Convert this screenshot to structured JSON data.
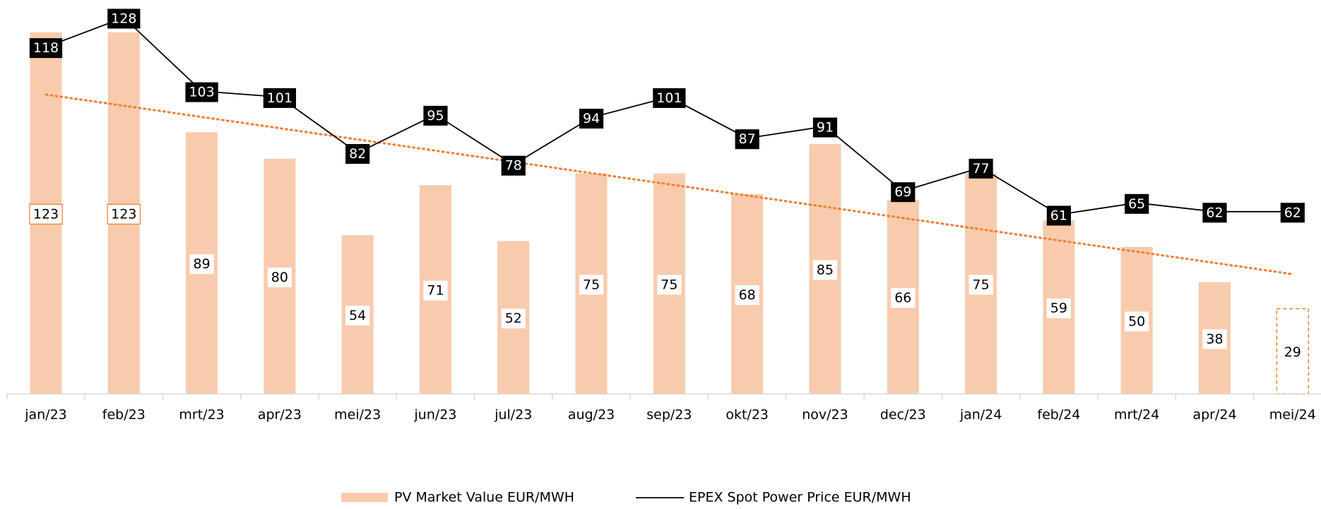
{
  "chart_data": {
    "type": "bar_line",
    "categories": [
      "jan/23",
      "feb/23",
      "mrt/23",
      "apr/23",
      "mei/23",
      "jun/23",
      "jul/23",
      "aug/23",
      "sep/23",
      "okt/23",
      "nov/23",
      "dec/23",
      "jan/24",
      "feb/24",
      "mrt/24",
      "apr/24",
      "mei/24"
    ],
    "series": [
      {
        "name": "PV Market Value EUR/MWH",
        "type": "bar",
        "color": "#f8cbad",
        "values": [
          123,
          123,
          89,
          80,
          54,
          71,
          52,
          75,
          75,
          68,
          85,
          66,
          75,
          59,
          50,
          38,
          29
        ],
        "dashed_index": 16,
        "trendline_color": "#ed7d31"
      },
      {
        "name": "EPEX Spot Power Price EUR/MWH",
        "type": "line",
        "color": "#000000",
        "values": [
          118,
          128,
          103,
          101,
          82,
          95,
          78,
          94,
          101,
          87,
          91,
          69,
          77,
          61,
          65,
          62,
          62
        ]
      }
    ],
    "ylim": [
      0,
      134
    ],
    "legend": "bottom"
  }
}
